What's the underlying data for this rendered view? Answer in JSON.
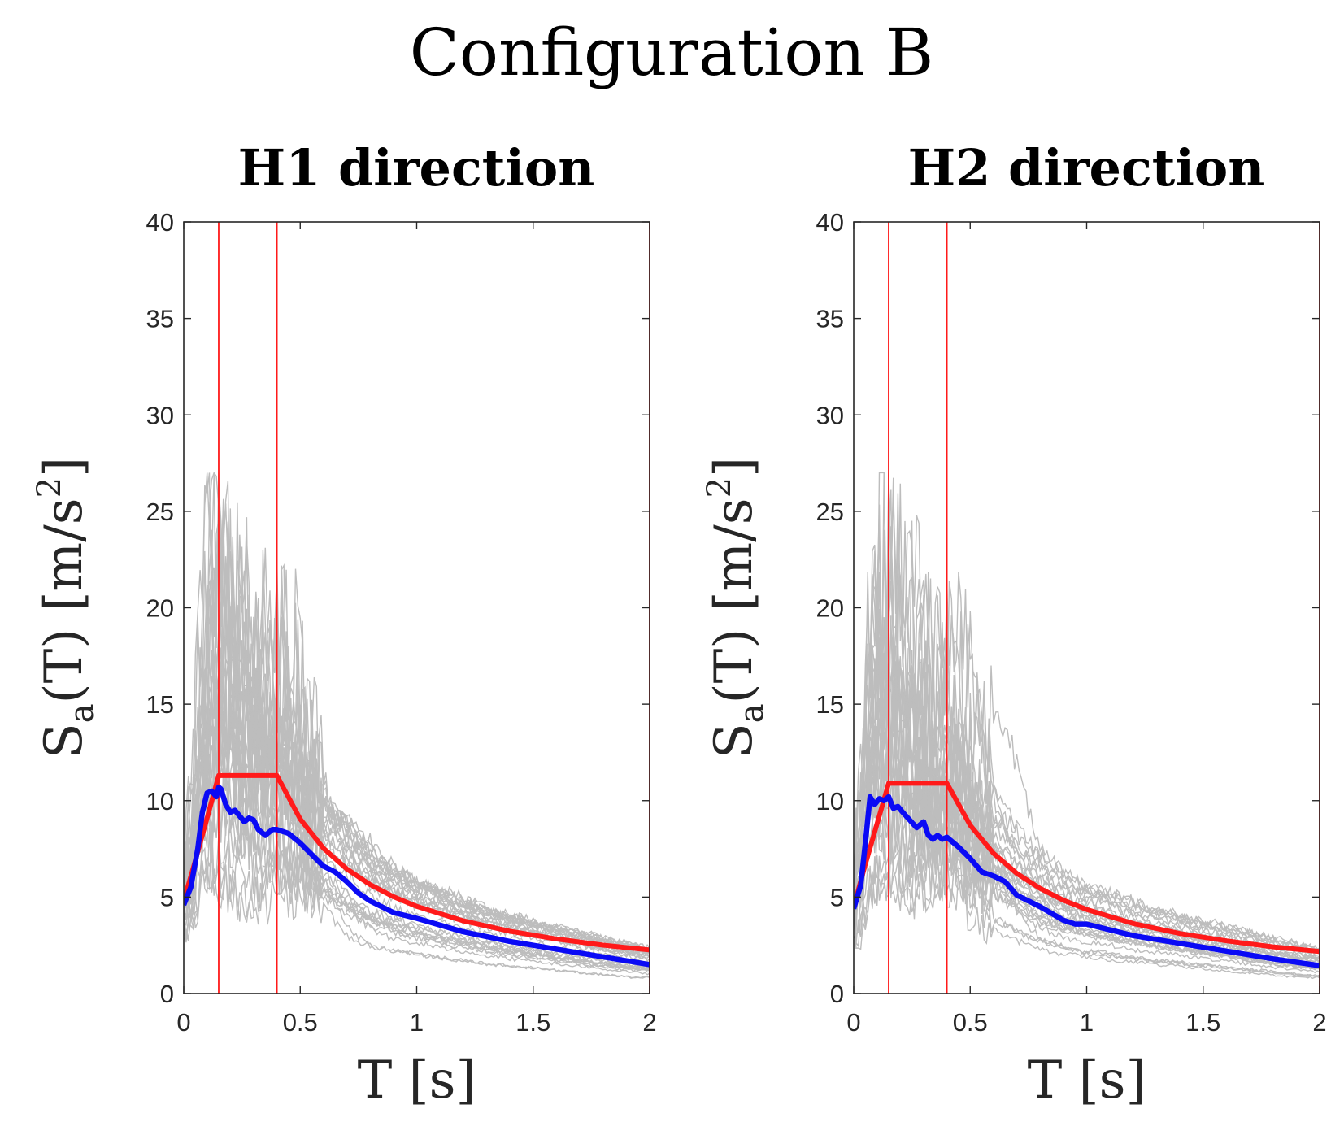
{
  "figure_title": "Configuration B",
  "colors": {
    "records": "#bdbdbd",
    "target": "#ff1a1a",
    "mean": "#0a0af5",
    "period_lines": "#ff1a1a",
    "axes": "#262626"
  },
  "chart_data": [
    {
      "type": "line",
      "title": "H1 direction",
      "xlabel": "T [s]",
      "ylabel": {
        "main": "S",
        "sub": "a",
        "rest": "(T) [m/s",
        "sup": "2",
        "close": "]"
      },
      "xlim": [
        0,
        2
      ],
      "ylim": [
        0,
        40
      ],
      "xticks": [
        0,
        0.5,
        1,
        1.5,
        2
      ],
      "xtick_labels": [
        "0",
        "0.5",
        "1",
        "1.5",
        "2"
      ],
      "yticks": [
        0,
        5,
        10,
        15,
        20,
        25,
        30,
        35,
        40
      ],
      "ytick_labels": [
        "0",
        "5",
        "10",
        "15",
        "20",
        "25",
        "30",
        "35",
        "40"
      ],
      "vertical_lines": [
        0.15,
        0.4,
        2.0
      ],
      "target_spectrum": {
        "name": "target",
        "x": [
          0,
          0.05,
          0.1,
          0.15,
          0.2,
          0.25,
          0.3,
          0.35,
          0.4,
          0.5,
          0.6,
          0.7,
          0.8,
          0.9,
          1.0,
          1.2,
          1.4,
          1.6,
          1.8,
          2.0
        ],
        "y": [
          4.8,
          6.9,
          9.1,
          11.3,
          11.3,
          11.3,
          11.3,
          11.3,
          11.3,
          9.04,
          7.53,
          6.46,
          5.65,
          5.02,
          4.52,
          3.77,
          3.23,
          2.83,
          2.51,
          2.26
        ]
      },
      "mean_spectrum": {
        "name": "mean",
        "x": [
          0,
          0.03,
          0.06,
          0.08,
          0.1,
          0.12,
          0.14,
          0.15,
          0.16,
          0.18,
          0.2,
          0.22,
          0.24,
          0.26,
          0.28,
          0.3,
          0.32,
          0.35,
          0.38,
          0.4,
          0.45,
          0.5,
          0.55,
          0.6,
          0.65,
          0.7,
          0.75,
          0.8,
          0.9,
          1.0,
          1.2,
          1.4,
          1.6,
          1.8,
          2.0
        ],
        "y": [
          4.6,
          5.5,
          7.5,
          9.4,
          10.4,
          10.5,
          10.2,
          10.7,
          10.6,
          9.8,
          9.4,
          9.5,
          9.2,
          8.9,
          9.1,
          9.0,
          8.5,
          8.2,
          8.5,
          8.5,
          8.3,
          7.8,
          7.2,
          6.6,
          6.3,
          5.8,
          5.2,
          4.8,
          4.2,
          3.9,
          3.2,
          2.7,
          2.3,
          1.9,
          1.5
        ]
      },
      "record_count": 30
    },
    {
      "type": "line",
      "title": "H2 direction",
      "xlabel": "T [s]",
      "ylabel": {
        "main": "S",
        "sub": "a",
        "rest": "(T) [m/s",
        "sup": "2",
        "close": "]"
      },
      "xlim": [
        0,
        2
      ],
      "ylim": [
        0,
        40
      ],
      "xticks": [
        0,
        0.5,
        1,
        1.5,
        2
      ],
      "xtick_labels": [
        "0",
        "0.5",
        "1",
        "1.5",
        "2"
      ],
      "yticks": [
        0,
        5,
        10,
        15,
        20,
        25,
        30,
        35,
        40
      ],
      "ytick_labels": [
        "0",
        "5",
        "10",
        "15",
        "20",
        "25",
        "30",
        "35",
        "40"
      ],
      "vertical_lines": [
        0.15,
        0.4,
        2.0
      ],
      "target_spectrum": {
        "name": "target",
        "x": [
          0,
          0.05,
          0.1,
          0.15,
          0.2,
          0.25,
          0.3,
          0.35,
          0.4,
          0.5,
          0.6,
          0.7,
          0.8,
          0.9,
          1.0,
          1.2,
          1.4,
          1.6,
          1.8,
          2.0
        ],
        "y": [
          4.5,
          6.7,
          8.8,
          10.9,
          10.9,
          10.9,
          10.9,
          10.9,
          10.9,
          8.72,
          7.27,
          6.23,
          5.45,
          4.84,
          4.36,
          3.63,
          3.11,
          2.73,
          2.42,
          2.18
        ]
      },
      "mean_spectrum": {
        "name": "mean",
        "x": [
          0,
          0.03,
          0.05,
          0.07,
          0.09,
          0.11,
          0.13,
          0.15,
          0.17,
          0.19,
          0.21,
          0.24,
          0.27,
          0.3,
          0.32,
          0.34,
          0.36,
          0.38,
          0.4,
          0.45,
          0.5,
          0.55,
          0.6,
          0.65,
          0.7,
          0.75,
          0.8,
          0.9,
          0.95,
          1.0,
          1.2,
          1.4,
          1.6,
          1.8,
          2.0
        ],
        "y": [
          4.4,
          5.6,
          7.8,
          10.2,
          9.8,
          10.1,
          10.0,
          10.2,
          9.6,
          9.7,
          9.4,
          9.0,
          8.6,
          8.9,
          8.2,
          8.0,
          8.2,
          8.0,
          8.1,
          7.6,
          7.0,
          6.3,
          6.1,
          5.8,
          5.1,
          4.8,
          4.5,
          3.8,
          3.6,
          3.6,
          3.0,
          2.6,
          2.2,
          1.8,
          1.45
        ]
      },
      "record_count": 30
    }
  ]
}
